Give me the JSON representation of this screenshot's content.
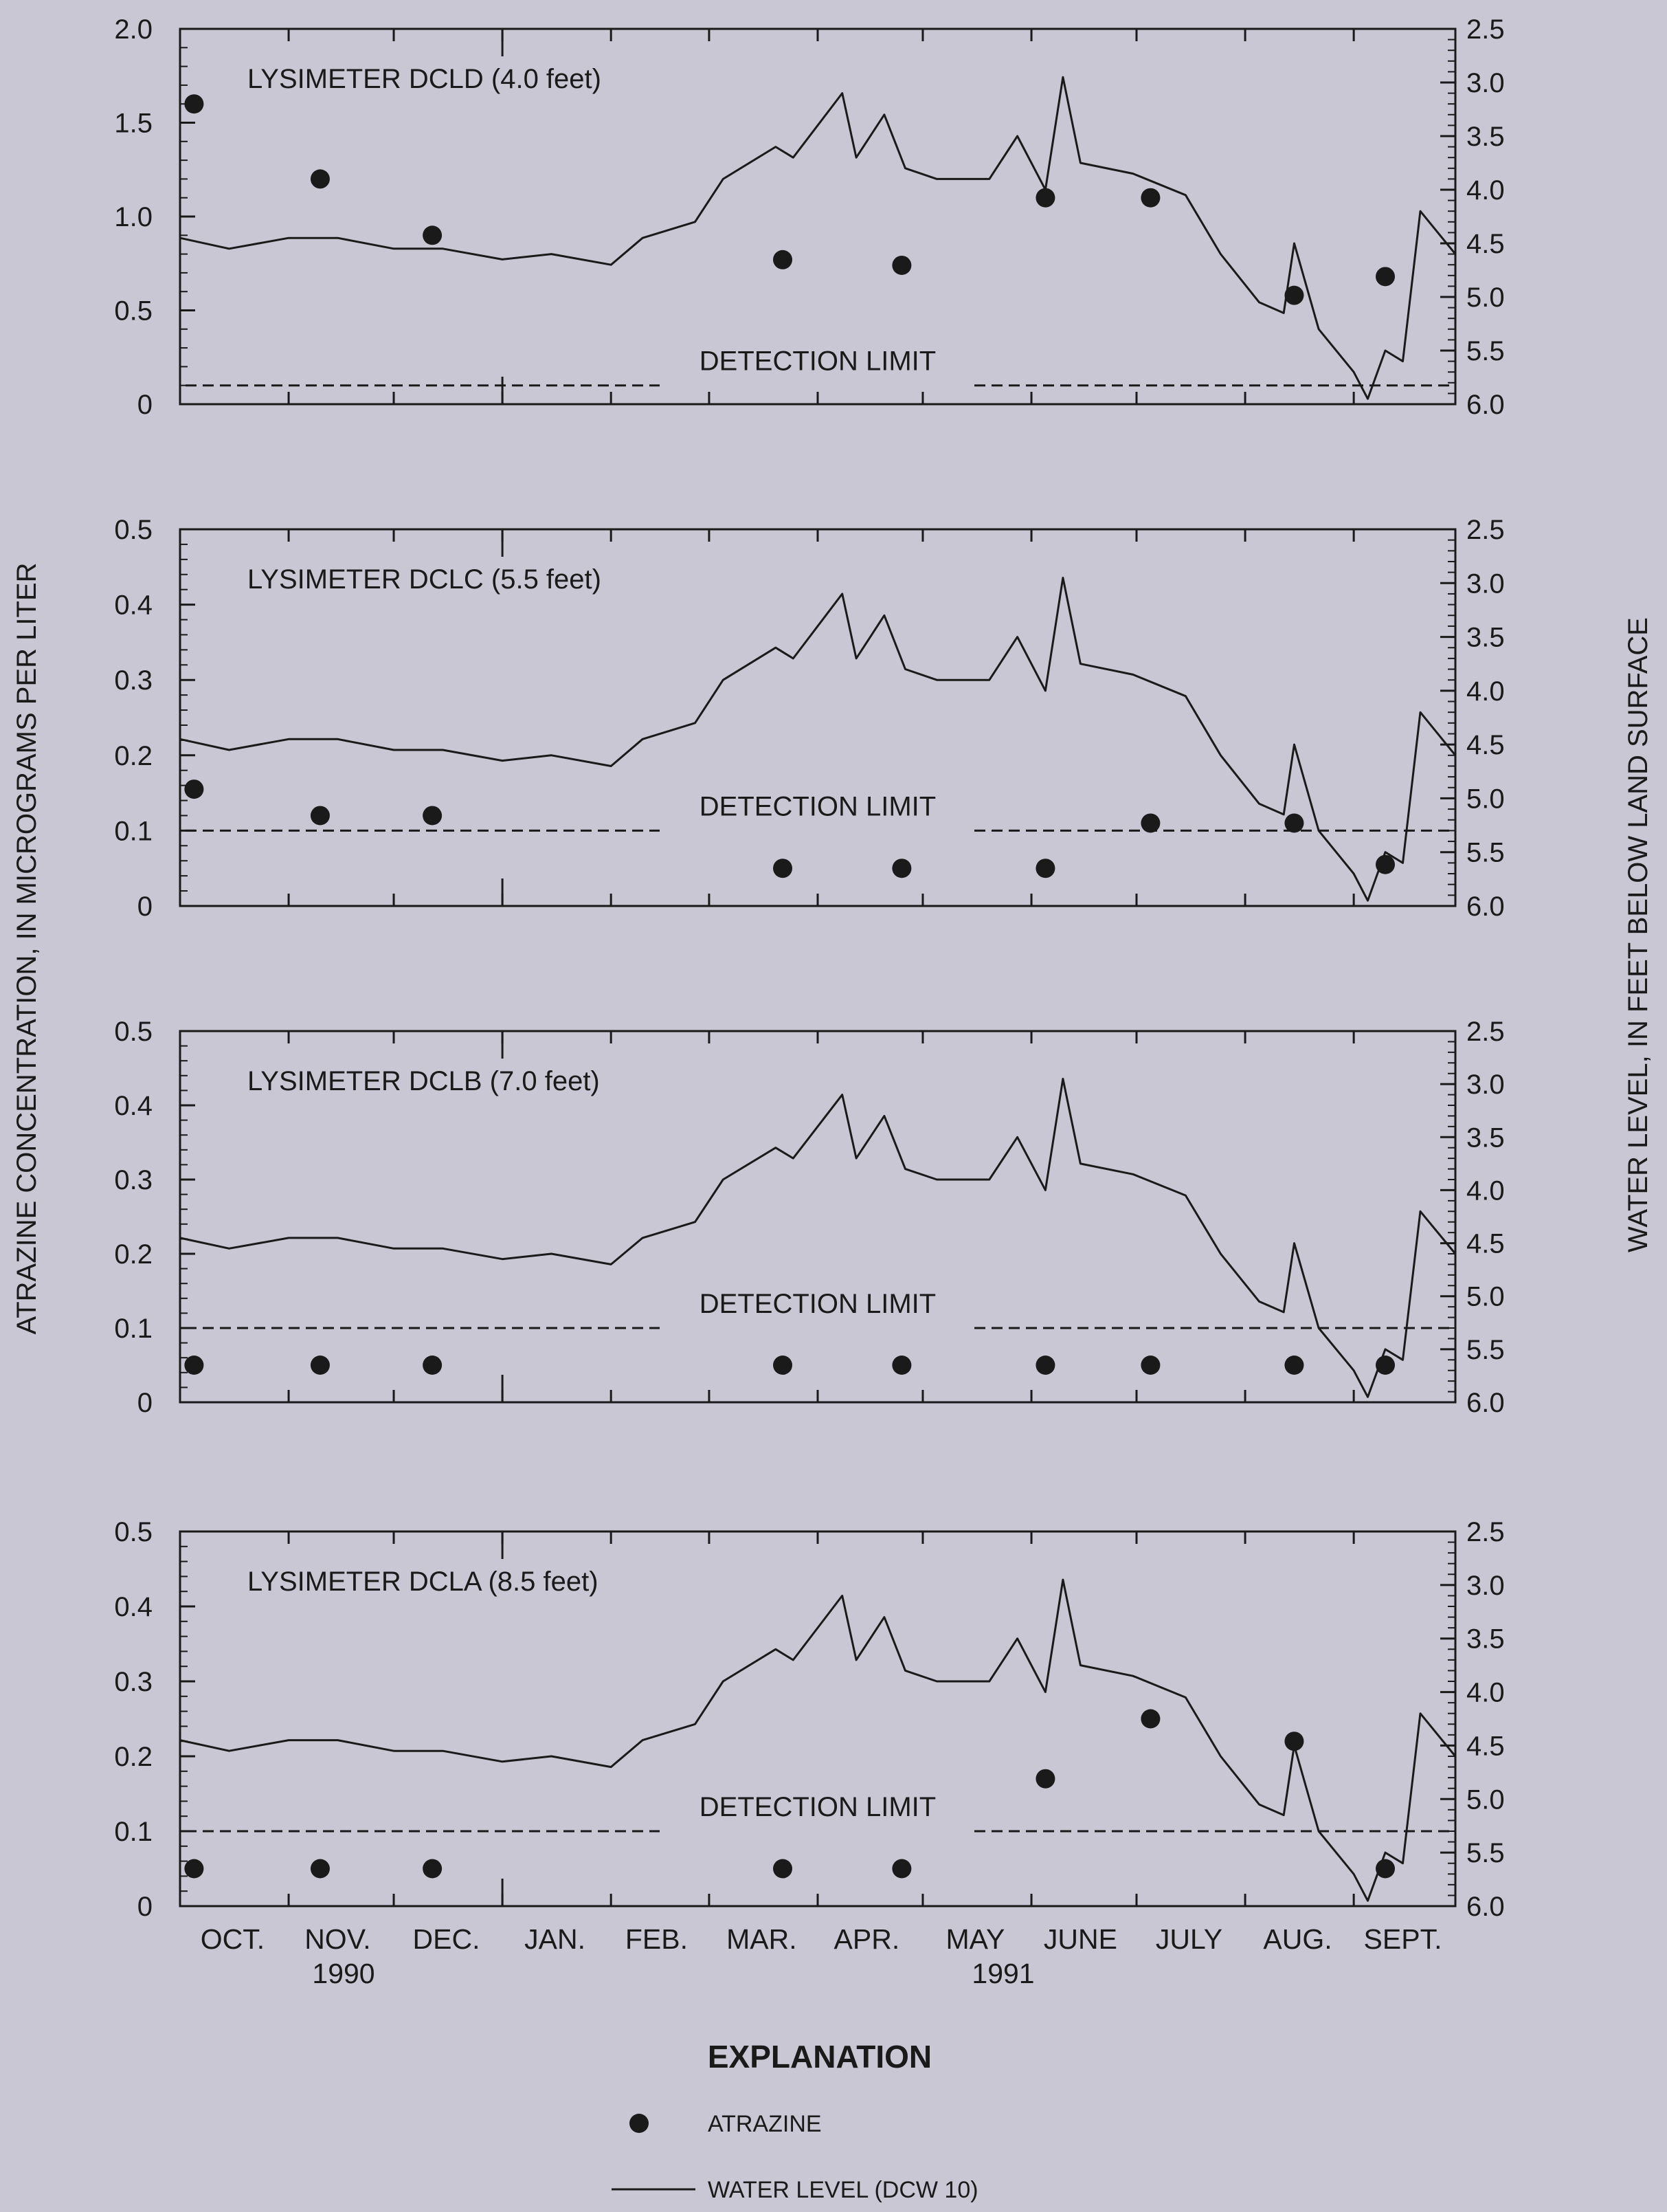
{
  "figure": {
    "y_left_label": "ATRAZINE CONCENTRATION, IN MICROGRAMS PER LITER",
    "y_right_label": "WATER LEVEL, IN FEET BELOW LAND SURFACE",
    "x_axis": {
      "months": [
        "OCT.",
        "NOV.",
        "DEC.",
        "JAN.",
        "FEB.",
        "MAR.",
        "APR.",
        "MAY",
        "JUNE",
        "JULY",
        "AUG.",
        "SEPT."
      ],
      "years": [
        "1990",
        "1991"
      ]
    },
    "explanation": {
      "title": "EXPLANATION",
      "atrazine_label": "ATRAZINE",
      "water_level_label": "WATER LEVEL (DCW 10)"
    }
  },
  "chart_data": [
    {
      "type": "scatter",
      "title": "LYSIMETER DCLD (4.0 feet)",
      "detection_label": "DETECTION LIMIT",
      "ylim": [
        0,
        2.0
      ],
      "yticks": [
        "0",
        "0.5",
        "1.0",
        "1.5",
        "2.0"
      ],
      "detection_limit": 0.1,
      "series": [
        {
          "name": "ATRAZINE",
          "x": [
            "1990-10-05",
            "1990-11-10",
            "1990-12-12",
            "1991-03-22",
            "1991-04-25",
            "1991-06-05",
            "1991-07-05",
            "1991-08-15",
            "1991-09-10"
          ],
          "values": [
            1.6,
            1.2,
            0.9,
            0.77,
            0.74,
            1.1,
            1.1,
            0.58,
            0.68
          ]
        }
      ]
    },
    {
      "type": "scatter",
      "title": "LYSIMETER DCLC (5.5 feet)",
      "detection_label": "DETECTION LIMIT",
      "ylim": [
        0,
        0.5
      ],
      "yticks": [
        "0",
        "0.1",
        "0.2",
        "0.3",
        "0.4",
        "0.5"
      ],
      "detection_limit": 0.1,
      "series": [
        {
          "name": "ATRAZINE",
          "x": [
            "1990-10-05",
            "1990-11-10",
            "1990-12-12",
            "1991-03-22",
            "1991-04-25",
            "1991-06-05",
            "1991-07-05",
            "1991-08-15",
            "1991-09-10"
          ],
          "values": [
            0.155,
            0.12,
            0.12,
            0.05,
            0.05,
            0.05,
            0.11,
            0.11,
            0.055
          ]
        }
      ]
    },
    {
      "type": "scatter",
      "title": "LYSIMETER DCLB (7.0 feet)",
      "detection_label": "DETECTION LIMIT",
      "ylim": [
        0,
        0.5
      ],
      "yticks": [
        "0",
        "0.1",
        "0.2",
        "0.3",
        "0.4",
        "0.5"
      ],
      "detection_limit": 0.1,
      "series": [
        {
          "name": "ATRAZINE",
          "x": [
            "1990-10-05",
            "1990-11-10",
            "1990-12-12",
            "1991-03-22",
            "1991-04-25",
            "1991-06-05",
            "1991-07-05",
            "1991-08-15",
            "1991-09-10"
          ],
          "values": [
            0.05,
            0.05,
            0.05,
            0.05,
            0.05,
            0.05,
            0.05,
            0.05,
            0.05
          ]
        }
      ]
    },
    {
      "type": "scatter",
      "title": "LYSIMETER DCLA (8.5 feet)",
      "detection_label": "DETECTION LIMIT",
      "ylim": [
        0,
        0.5
      ],
      "yticks": [
        "0",
        "0.1",
        "0.2",
        "0.3",
        "0.4",
        "0.5"
      ],
      "detection_limit": 0.1,
      "series": [
        {
          "name": "ATRAZINE",
          "x": [
            "1990-10-05",
            "1990-11-10",
            "1990-12-12",
            "1991-03-22",
            "1991-04-25",
            "1991-06-05",
            "1991-07-05",
            "1991-08-15",
            "1991-09-10"
          ],
          "values": [
            0.05,
            0.05,
            0.05,
            0.05,
            0.05,
            0.17,
            0.25,
            0.22,
            0.05
          ]
        }
      ]
    },
    {
      "type": "line",
      "name": "WATER LEVEL (DCW 10)",
      "y_right_ylim": [
        6.0,
        2.5
      ],
      "y_right_ticks": [
        "2.5",
        "3.0",
        "3.5",
        "4.0",
        "4.5",
        "5.0",
        "5.5",
        "6.0"
      ],
      "x": [
        "1990-10-01",
        "1990-10-15",
        "1990-11-01",
        "1990-11-15",
        "1990-12-01",
        "1990-12-15",
        "1991-01-01",
        "1991-01-15",
        "1991-02-01",
        "1991-02-10",
        "1991-02-25",
        "1991-03-05",
        "1991-03-20",
        "1991-03-25",
        "1991-04-08",
        "1991-04-12",
        "1991-04-20",
        "1991-04-26",
        "1991-05-05",
        "1991-05-20",
        "1991-05-28",
        "1991-06-05",
        "1991-06-10",
        "1991-06-15",
        "1991-06-30",
        "1991-07-15",
        "1991-07-25",
        "1991-08-05",
        "1991-08-12",
        "1991-08-15",
        "1991-08-22",
        "1991-09-01",
        "1991-09-05",
        "1991-09-10",
        "1991-09-15",
        "1991-09-20",
        "1991-09-30"
      ],
      "values": [
        4.45,
        4.55,
        4.45,
        4.45,
        4.55,
        4.55,
        4.65,
        4.6,
        4.7,
        4.45,
        4.3,
        3.9,
        3.6,
        3.7,
        3.1,
        3.7,
        3.3,
        3.8,
        3.9,
        3.9,
        3.5,
        4.0,
        2.95,
        3.75,
        3.85,
        4.05,
        4.6,
        5.05,
        5.15,
        4.5,
        5.3,
        5.7,
        5.95,
        5.5,
        5.6,
        4.2,
        4.6
      ]
    }
  ]
}
